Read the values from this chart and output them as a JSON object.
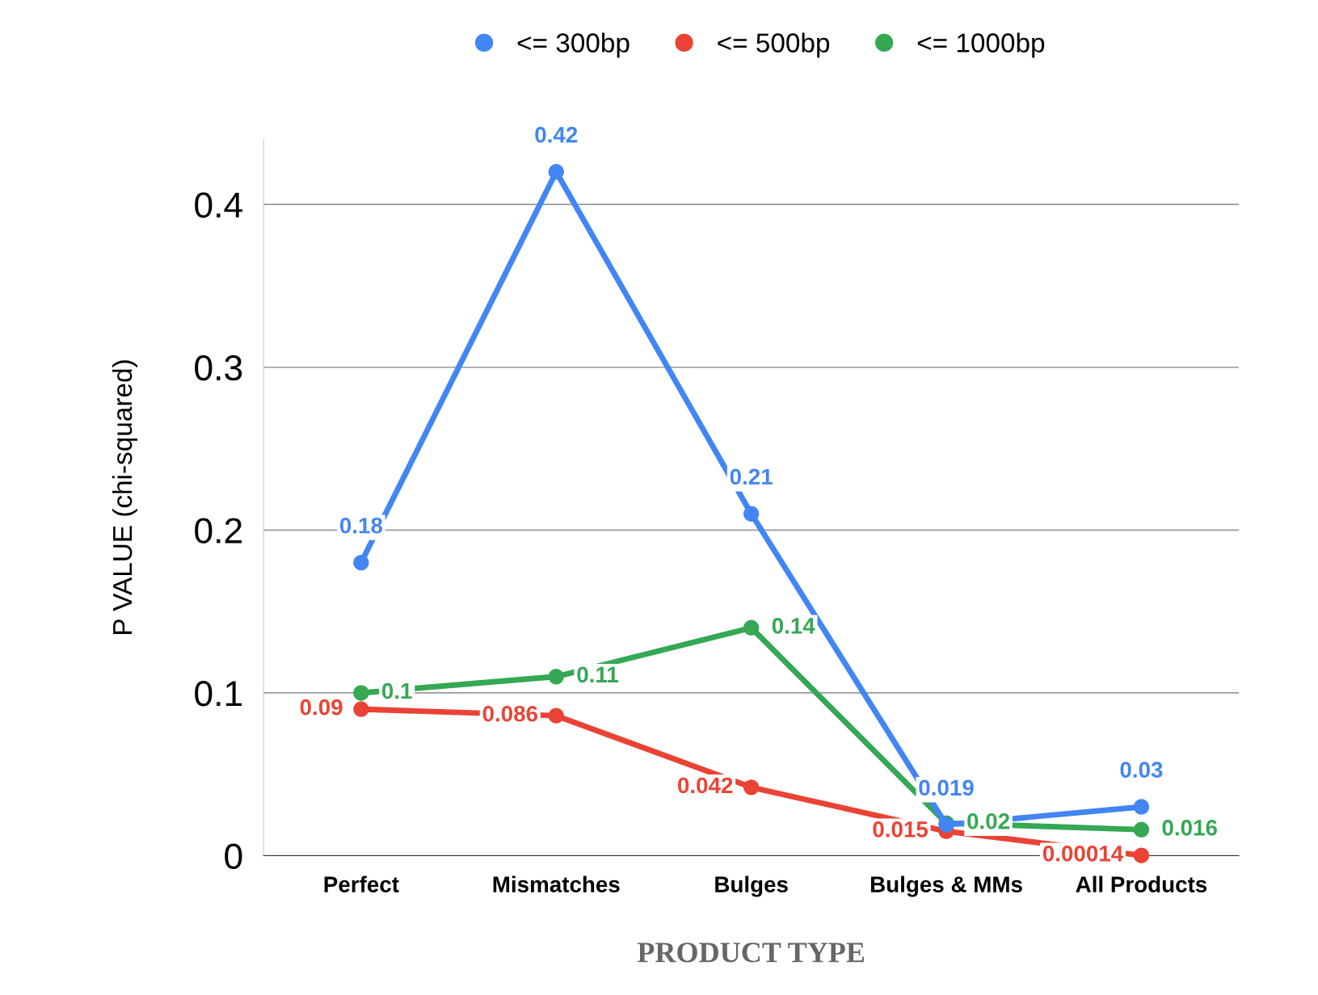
{
  "chart_data": {
    "type": "line",
    "xlabel": "PRODUCT TYPE",
    "ylabel": "P VALUE (chi-squared)",
    "categories": [
      "Perfect",
      "Mismatches",
      "Bulges",
      "Bulges & MMs",
      "All Products"
    ],
    "series": [
      {
        "name": "<= 300bp",
        "color": "#4285f4",
        "values": [
          0.18,
          0.42,
          0.21,
          0.019,
          0.03
        ]
      },
      {
        "name": "<= 500bp",
        "color": "#ea4335",
        "values": [
          0.09,
          0.086,
          0.042,
          0.015,
          0.00014
        ]
      },
      {
        "name": "<= 1000bp",
        "color": "#34a853",
        "values": [
          0.1,
          0.11,
          0.14,
          0.02,
          0.016
        ]
      }
    ],
    "ylim": [
      0,
      0.44
    ],
    "yticks": [
      0,
      0.1,
      0.2,
      0.3,
      0.4
    ],
    "grid": "y",
    "legend": "top",
    "marker": "circle",
    "line_style": "solid",
    "data_labels": true
  }
}
